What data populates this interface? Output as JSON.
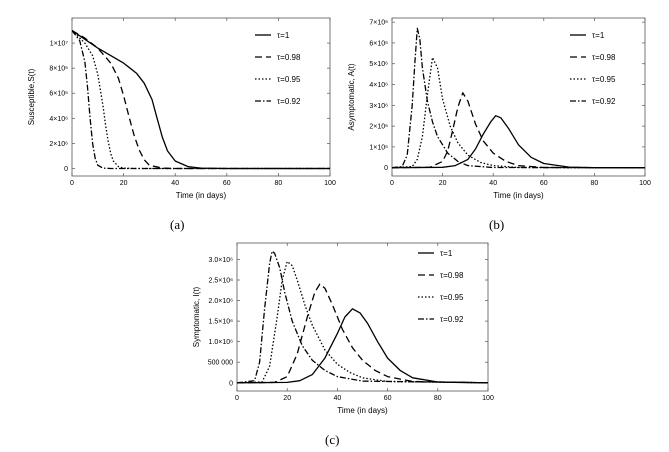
{
  "figure_captions": [
    "(a)",
    "(b)",
    "(c)"
  ],
  "chart_data": [
    {
      "type": "line",
      "panel": "(a)",
      "title": "",
      "xlabel": "Time (in days)",
      "ylabel": "Susceptible,S(t)",
      "xlim": [
        0,
        100
      ],
      "ylim": [
        -600000,
        12000000
      ],
      "xticks": [
        0,
        20,
        40,
        60,
        80,
        100
      ],
      "xtick_labels": [
        "0",
        "20",
        "40",
        "60",
        "80",
        "100"
      ],
      "yticks": [
        0,
        2000000,
        4000000,
        6000000,
        8000000,
        10000000
      ],
      "ytick_labels": [
        "0",
        "2×10⁶",
        "4×10⁶",
        "6×10⁶",
        "8×10⁶",
        "1×10⁷"
      ],
      "legend_position": "top-right",
      "series": [
        {
          "name": "τ=1",
          "style": "solid",
          "x": [
            0,
            5,
            10,
            15,
            20,
            25,
            28,
            31,
            33,
            35,
            37,
            40,
            45,
            50,
            60,
            100
          ],
          "y": [
            11000000,
            10300000,
            9600000,
            9000000,
            8400000,
            7600000,
            6800000,
            5500000,
            4000000,
            2500000,
            1400000,
            600000,
            150000,
            30000,
            0,
            0
          ]
        },
        {
          "name": "τ=0.98",
          "style": "dash",
          "x": [
            0,
            5,
            10,
            15,
            18,
            20,
            22,
            24,
            26,
            28,
            30,
            35,
            40,
            100
          ],
          "y": [
            11000000,
            10400000,
            9600000,
            8400000,
            7200000,
            5800000,
            4200000,
            2700000,
            1500000,
            700000,
            250000,
            30000,
            0,
            0
          ]
        },
        {
          "name": "τ=0.95",
          "style": "dot",
          "x": [
            0,
            5,
            8,
            10,
            12,
            13,
            14,
            15,
            16,
            18,
            20,
            25,
            100
          ],
          "y": [
            11000000,
            10000000,
            9000000,
            7500000,
            5000000,
            3500000,
            2200000,
            1200000,
            600000,
            150000,
            30000,
            0,
            0
          ]
        },
        {
          "name": "τ=0.92",
          "style": "dashdot",
          "x": [
            0,
            3,
            5,
            6,
            7,
            8,
            9,
            10,
            12,
            15,
            100
          ],
          "y": [
            11000000,
            10200000,
            8500000,
            6500000,
            4000000,
            2000000,
            800000,
            250000,
            30000,
            0,
            0
          ]
        }
      ]
    },
    {
      "type": "line",
      "panel": "(b)",
      "title": "",
      "xlabel": "Time (in days)",
      "ylabel": "Asymptomatic, A(t)",
      "xlim": [
        0,
        100
      ],
      "ylim": [
        -400000,
        7200000
      ],
      "xticks": [
        0,
        20,
        40,
        60,
        80,
        100
      ],
      "xtick_labels": [
        "0",
        "20",
        "40",
        "60",
        "80",
        "100"
      ],
      "yticks": [
        0,
        1000000,
        2000000,
        3000000,
        4000000,
        5000000,
        6000000,
        7000000
      ],
      "ytick_labels": [
        "0",
        "1×10⁶",
        "2×10⁶",
        "3×10⁶",
        "4×10⁶",
        "5×10⁶",
        "6×10⁶",
        "7×10⁶"
      ],
      "legend_position": "top-right",
      "series": [
        {
          "name": "τ=1",
          "style": "solid",
          "x": [
            0,
            20,
            25,
            30,
            33,
            36,
            39,
            41,
            43,
            46,
            50,
            55,
            60,
            70,
            80,
            100
          ],
          "y": [
            0,
            20000,
            100000,
            400000,
            900000,
            1600000,
            2200000,
            2500000,
            2400000,
            1900000,
            1100000,
            500000,
            200000,
            30000,
            0,
            0
          ]
        },
        {
          "name": "τ=0.98",
          "style": "dash",
          "x": [
            0,
            15,
            20,
            22,
            24,
            26,
            28,
            30,
            33,
            36,
            40,
            45,
            50,
            60,
            100
          ],
          "y": [
            0,
            20000,
            300000,
            800000,
            1800000,
            2900000,
            3600000,
            3200000,
            2100000,
            1300000,
            700000,
            300000,
            100000,
            10000,
            0
          ]
        },
        {
          "name": "τ=0.95",
          "style": "dot",
          "x": [
            0,
            8,
            10,
            12,
            14,
            16,
            18,
            20,
            23,
            26,
            30,
            35,
            40,
            50,
            100
          ],
          "y": [
            0,
            50000,
            400000,
            1500000,
            3500000,
            5300000,
            4800000,
            3300000,
            2000000,
            1200000,
            600000,
            250000,
            100000,
            10000,
            0
          ]
        },
        {
          "name": "τ=0.92",
          "style": "dashdot",
          "x": [
            0,
            4,
            6,
            8,
            9,
            10,
            11,
            12,
            14,
            16,
            18,
            22,
            26,
            30,
            40,
            100
          ],
          "y": [
            0,
            50000,
            600000,
            3000000,
            5000000,
            6700000,
            6200000,
            4800000,
            3200000,
            2200000,
            1500000,
            700000,
            300000,
            100000,
            10000,
            0
          ]
        }
      ]
    },
    {
      "type": "line",
      "panel": "(c)",
      "title": "",
      "xlabel": "Time (in days)",
      "ylabel": "Symptomatic, I(t)",
      "xlim": [
        0,
        100
      ],
      "ylim": [
        -200000,
        3400000
      ],
      "xticks": [
        0,
        20,
        40,
        60,
        80,
        100
      ],
      "xtick_labels": [
        "0",
        "20",
        "40",
        "60",
        "80",
        "100"
      ],
      "yticks": [
        0,
        500000,
        1000000,
        1500000,
        2000000,
        2500000,
        3000000
      ],
      "ytick_labels": [
        "0",
        "500 000",
        "1.0×10⁶",
        "1.5×10⁶",
        "2.0×10⁶",
        "2.5×10⁶",
        "3.0×10⁶"
      ],
      "legend_position": "top-right",
      "series": [
        {
          "name": "τ=1",
          "style": "solid",
          "x": [
            0,
            20,
            25,
            30,
            35,
            40,
            43,
            46,
            49,
            52,
            56,
            60,
            65,
            70,
            80,
            100
          ],
          "y": [
            0,
            10000,
            50000,
            200000,
            600000,
            1200000,
            1600000,
            1800000,
            1700000,
            1450000,
            1000000,
            600000,
            300000,
            120000,
            20000,
            0
          ]
        },
        {
          "name": "τ=0.98",
          "style": "dash",
          "x": [
            0,
            15,
            20,
            24,
            28,
            31,
            33,
            35,
            38,
            42,
            46,
            50,
            55,
            60,
            70,
            100
          ],
          "y": [
            0,
            10000,
            150000,
            700000,
            1600000,
            2200000,
            2400000,
            2300000,
            1900000,
            1300000,
            850000,
            550000,
            300000,
            150000,
            30000,
            0
          ]
        },
        {
          "name": "τ=0.95",
          "style": "dot",
          "x": [
            0,
            10,
            13,
            16,
            18,
            20,
            22,
            24,
            27,
            30,
            35,
            40,
            45,
            50,
            60,
            100
          ],
          "y": [
            0,
            20000,
            400000,
            1600000,
            2500000,
            2950000,
            2850000,
            2500000,
            1900000,
            1400000,
            800000,
            450000,
            250000,
            120000,
            30000,
            0
          ]
        },
        {
          "name": "τ=0.92",
          "style": "dashdot",
          "x": [
            0,
            7,
            9,
            11,
            13,
            14,
            15,
            17,
            19,
            22,
            26,
            30,
            35,
            40,
            50,
            100
          ],
          "y": [
            0,
            50000,
            500000,
            1800000,
            2900000,
            3200000,
            3150000,
            2800000,
            2200000,
            1500000,
            900000,
            550000,
            300000,
            150000,
            40000,
            0
          ]
        }
      ]
    }
  ]
}
